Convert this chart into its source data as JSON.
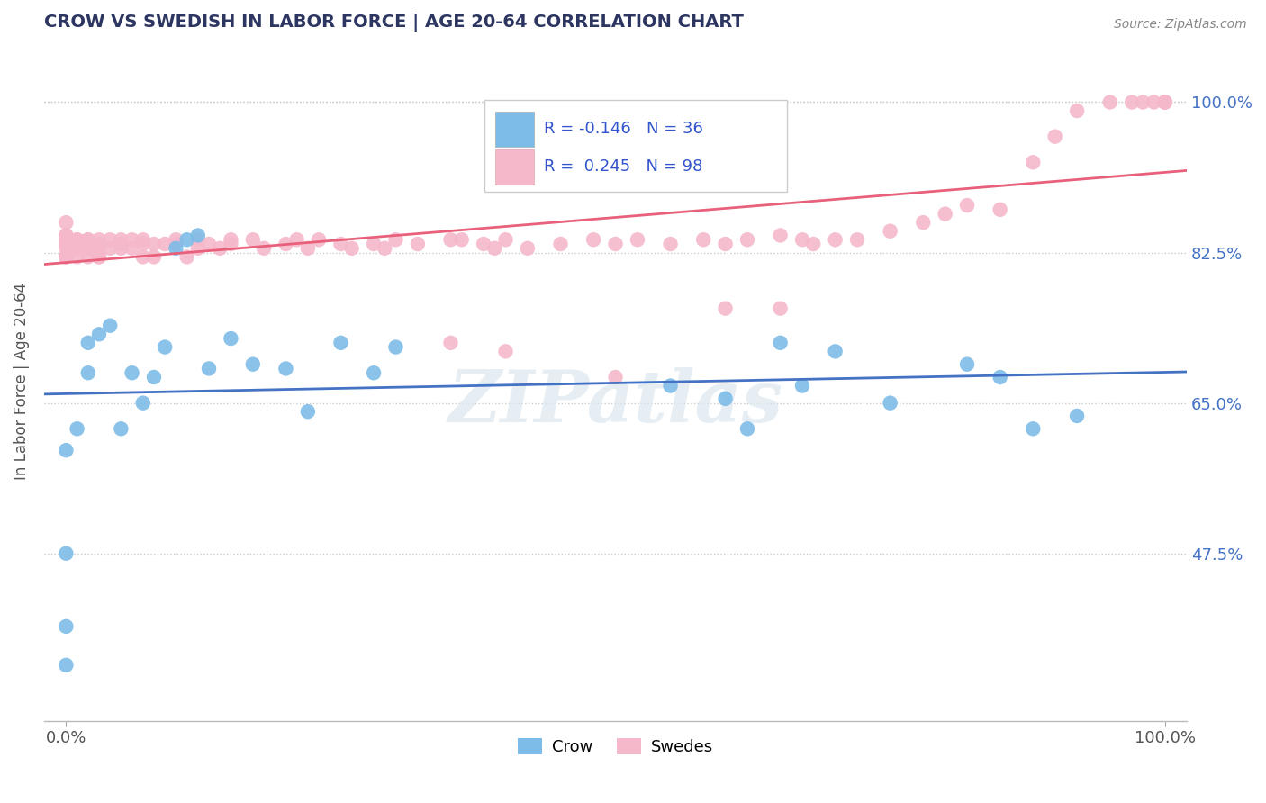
{
  "title": "CROW VS SWEDISH IN LABOR FORCE | AGE 20-64 CORRELATION CHART",
  "source_text": "Source: ZipAtlas.com",
  "ylabel": "In Labor Force | Age 20-64",
  "xlim": [
    -0.02,
    1.02
  ],
  "ylim": [
    0.28,
    1.07
  ],
  "ytick_positions": [
    0.475,
    0.65,
    0.825,
    1.0
  ],
  "ytick_labels": [
    "47.5%",
    "65.0%",
    "82.5%",
    "100.0%"
  ],
  "crow_color": "#7dbce8",
  "swedes_color": "#f5b8cb",
  "crow_line_color": "#4472c4",
  "swedes_line_color": "#e8607a",
  "crow_R": -0.146,
  "crow_N": 36,
  "swedes_R": 0.245,
  "swedes_N": 98,
  "legend_crow_label": "Crow",
  "legend_swedes_label": "Swedes",
  "watermark": "ZIPatlas",
  "crow_x": [
    0.0,
    0.0,
    0.0,
    0.0,
    0.01,
    0.02,
    0.02,
    0.03,
    0.04,
    0.05,
    0.06,
    0.07,
    0.08,
    0.09,
    0.1,
    0.11,
    0.12,
    0.13,
    0.15,
    0.17,
    0.2,
    0.22,
    0.25,
    0.28,
    0.3,
    0.55,
    0.6,
    0.62,
    0.65,
    0.67,
    0.7,
    0.75,
    0.82,
    0.85,
    0.88,
    0.92
  ],
  "crow_y": [
    0.595,
    0.475,
    0.39,
    0.345,
    0.62,
    0.685,
    0.72,
    0.73,
    0.74,
    0.62,
    0.685,
    0.65,
    0.68,
    0.715,
    0.83,
    0.84,
    0.845,
    0.69,
    0.725,
    0.695,
    0.69,
    0.64,
    0.72,
    0.685,
    0.715,
    0.67,
    0.655,
    0.62,
    0.72,
    0.67,
    0.71,
    0.65,
    0.695,
    0.68,
    0.62,
    0.635
  ],
  "swedes_x": [
    0.0,
    0.0,
    0.0,
    0.0,
    0.0,
    0.0,
    0.0,
    0.0,
    0.0,
    0.01,
    0.01,
    0.01,
    0.01,
    0.01,
    0.02,
    0.02,
    0.02,
    0.02,
    0.02,
    0.03,
    0.03,
    0.03,
    0.03,
    0.03,
    0.04,
    0.04,
    0.05,
    0.05,
    0.05,
    0.06,
    0.06,
    0.07,
    0.07,
    0.07,
    0.08,
    0.08,
    0.09,
    0.1,
    0.1,
    0.11,
    0.12,
    0.12,
    0.13,
    0.14,
    0.15,
    0.15,
    0.17,
    0.18,
    0.2,
    0.21,
    0.22,
    0.23,
    0.25,
    0.26,
    0.28,
    0.29,
    0.3,
    0.32,
    0.35,
    0.36,
    0.38,
    0.39,
    0.4,
    0.42,
    0.45,
    0.48,
    0.5,
    0.52,
    0.55,
    0.58,
    0.6,
    0.62,
    0.65,
    0.67,
    0.68,
    0.7,
    0.72,
    0.75,
    0.78,
    0.8,
    0.82,
    0.85,
    0.88,
    0.9,
    0.92,
    0.95,
    0.97,
    0.98,
    0.99,
    1.0,
    1.0,
    1.0,
    1.0,
    0.35,
    0.4,
    0.5,
    0.6,
    0.65
  ],
  "swedes_y": [
    0.86,
    0.845,
    0.83,
    0.82,
    0.82,
    0.84,
    0.845,
    0.835,
    0.82,
    0.84,
    0.84,
    0.83,
    0.82,
    0.835,
    0.84,
    0.835,
    0.82,
    0.83,
    0.84,
    0.82,
    0.835,
    0.84,
    0.83,
    0.82,
    0.83,
    0.84,
    0.835,
    0.83,
    0.84,
    0.83,
    0.84,
    0.82,
    0.835,
    0.84,
    0.82,
    0.835,
    0.835,
    0.84,
    0.835,
    0.82,
    0.83,
    0.84,
    0.835,
    0.83,
    0.84,
    0.835,
    0.84,
    0.83,
    0.835,
    0.84,
    0.83,
    0.84,
    0.835,
    0.83,
    0.835,
    0.83,
    0.84,
    0.835,
    0.84,
    0.84,
    0.835,
    0.83,
    0.84,
    0.83,
    0.835,
    0.84,
    0.835,
    0.84,
    0.835,
    0.84,
    0.835,
    0.84,
    0.845,
    0.84,
    0.835,
    0.84,
    0.84,
    0.85,
    0.86,
    0.87,
    0.88,
    0.875,
    0.93,
    0.96,
    0.99,
    1.0,
    1.0,
    1.0,
    1.0,
    1.0,
    1.0,
    1.0,
    1.0,
    0.72,
    0.71,
    0.68,
    0.76,
    0.76
  ]
}
